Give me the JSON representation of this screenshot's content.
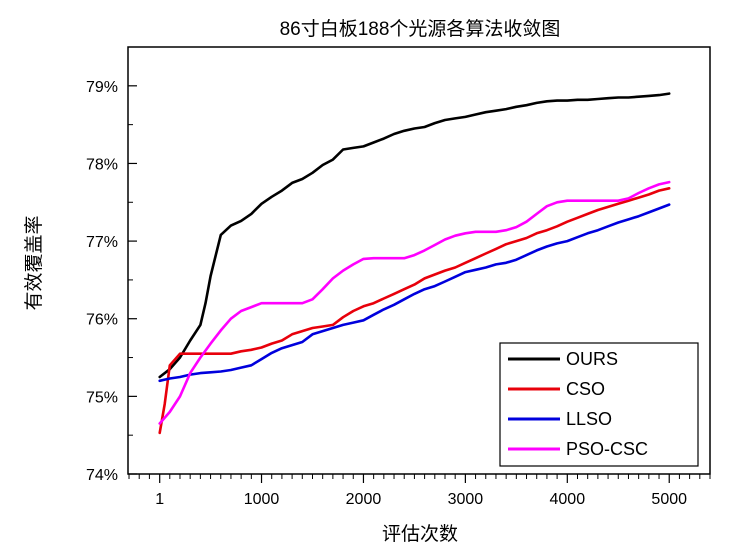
{
  "chart_data": {
    "type": "line",
    "title": "86寸白板188个光源各算法收敛图",
    "xlabel": "评估次数",
    "ylabel": "有效覆盖率",
    "xlim": [
      -310,
      5400
    ],
    "ylim": [
      74,
      79.5
    ],
    "x_ticks": [
      1,
      1000,
      2000,
      3000,
      4000,
      5000
    ],
    "x_tick_labels": [
      "1",
      "1000",
      "2000",
      "3000",
      "4000",
      "5000"
    ],
    "y_ticks": [
      74,
      75,
      76,
      77,
      78,
      79
    ],
    "y_tick_labels": [
      "74%",
      "75%",
      "76%",
      "77%",
      "78%",
      "79%"
    ],
    "grid": false,
    "legend_position": "bottom-right",
    "series": [
      {
        "name": "OURS",
        "color": "#000000",
        "points": [
          [
            1,
            75.25
          ],
          [
            100,
            75.35
          ],
          [
            200,
            75.5
          ],
          [
            300,
            75.72
          ],
          [
            400,
            75.92
          ],
          [
            450,
            76.2
          ],
          [
            500,
            76.55
          ],
          [
            600,
            77.08
          ],
          [
            700,
            77.2
          ],
          [
            800,
            77.26
          ],
          [
            900,
            77.35
          ],
          [
            1000,
            77.48
          ],
          [
            1100,
            77.57
          ],
          [
            1200,
            77.65
          ],
          [
            1300,
            77.75
          ],
          [
            1400,
            77.8
          ],
          [
            1500,
            77.88
          ],
          [
            1600,
            77.98
          ],
          [
            1700,
            78.05
          ],
          [
            1800,
            78.18
          ],
          [
            1900,
            78.2
          ],
          [
            2000,
            78.22
          ],
          [
            2100,
            78.27
          ],
          [
            2200,
            78.32
          ],
          [
            2300,
            78.38
          ],
          [
            2400,
            78.42
          ],
          [
            2500,
            78.45
          ],
          [
            2600,
            78.47
          ],
          [
            2700,
            78.52
          ],
          [
            2800,
            78.56
          ],
          [
            2900,
            78.58
          ],
          [
            3000,
            78.6
          ],
          [
            3100,
            78.63
          ],
          [
            3200,
            78.66
          ],
          [
            3300,
            78.68
          ],
          [
            3400,
            78.7
          ],
          [
            3500,
            78.73
          ],
          [
            3600,
            78.75
          ],
          [
            3700,
            78.78
          ],
          [
            3800,
            78.8
          ],
          [
            3900,
            78.81
          ],
          [
            4000,
            78.81
          ],
          [
            4100,
            78.82
          ],
          [
            4200,
            78.82
          ],
          [
            4300,
            78.83
          ],
          [
            4400,
            78.84
          ],
          [
            4500,
            78.85
          ],
          [
            4600,
            78.85
          ],
          [
            4700,
            78.86
          ],
          [
            4800,
            78.87
          ],
          [
            4900,
            78.88
          ],
          [
            5000,
            78.9
          ]
        ]
      },
      {
        "name": "CSO",
        "color": "#e8000b",
        "points": [
          [
            1,
            74.53
          ],
          [
            50,
            74.9
          ],
          [
            100,
            75.4
          ],
          [
            200,
            75.55
          ],
          [
            300,
            75.55
          ],
          [
            400,
            75.55
          ],
          [
            500,
            75.55
          ],
          [
            600,
            75.55
          ],
          [
            700,
            75.55
          ],
          [
            800,
            75.58
          ],
          [
            900,
            75.6
          ],
          [
            1000,
            75.63
          ],
          [
            1100,
            75.68
          ],
          [
            1200,
            75.72
          ],
          [
            1300,
            75.8
          ],
          [
            1400,
            75.84
          ],
          [
            1500,
            75.88
          ],
          [
            1600,
            75.9
          ],
          [
            1700,
            75.92
          ],
          [
            1800,
            76.02
          ],
          [
            1900,
            76.1
          ],
          [
            2000,
            76.16
          ],
          [
            2100,
            76.2
          ],
          [
            2200,
            76.26
          ],
          [
            2300,
            76.32
          ],
          [
            2400,
            76.38
          ],
          [
            2500,
            76.44
          ],
          [
            2600,
            76.52
          ],
          [
            2700,
            76.57
          ],
          [
            2800,
            76.62
          ],
          [
            2900,
            76.66
          ],
          [
            3000,
            76.72
          ],
          [
            3100,
            76.78
          ],
          [
            3200,
            76.84
          ],
          [
            3300,
            76.9
          ],
          [
            3400,
            76.96
          ],
          [
            3500,
            77.0
          ],
          [
            3600,
            77.04
          ],
          [
            3700,
            77.1
          ],
          [
            3800,
            77.14
          ],
          [
            3900,
            77.19
          ],
          [
            4000,
            77.25
          ],
          [
            4100,
            77.3
          ],
          [
            4200,
            77.35
          ],
          [
            4300,
            77.4
          ],
          [
            4400,
            77.44
          ],
          [
            4500,
            77.48
          ],
          [
            4600,
            77.52
          ],
          [
            4700,
            77.56
          ],
          [
            4800,
            77.6
          ],
          [
            4900,
            77.65
          ],
          [
            5000,
            77.68
          ]
        ]
      },
      {
        "name": "LLSO",
        "color": "#0000dd",
        "points": [
          [
            1,
            75.2
          ],
          [
            100,
            75.23
          ],
          [
            200,
            75.25
          ],
          [
            300,
            75.28
          ],
          [
            400,
            75.3
          ],
          [
            500,
            75.31
          ],
          [
            600,
            75.32
          ],
          [
            700,
            75.34
          ],
          [
            800,
            75.37
          ],
          [
            900,
            75.4
          ],
          [
            1000,
            75.48
          ],
          [
            1100,
            75.56
          ],
          [
            1200,
            75.62
          ],
          [
            1300,
            75.66
          ],
          [
            1400,
            75.7
          ],
          [
            1500,
            75.8
          ],
          [
            1600,
            75.84
          ],
          [
            1700,
            75.88
          ],
          [
            1800,
            75.92
          ],
          [
            1900,
            75.95
          ],
          [
            2000,
            75.98
          ],
          [
            2100,
            76.05
          ],
          [
            2200,
            76.12
          ],
          [
            2300,
            76.18
          ],
          [
            2400,
            76.25
          ],
          [
            2500,
            76.32
          ],
          [
            2600,
            76.38
          ],
          [
            2700,
            76.42
          ],
          [
            2800,
            76.48
          ],
          [
            2900,
            76.54
          ],
          [
            3000,
            76.6
          ],
          [
            3100,
            76.63
          ],
          [
            3200,
            76.66
          ],
          [
            3300,
            76.7
          ],
          [
            3400,
            76.72
          ],
          [
            3500,
            76.76
          ],
          [
            3600,
            76.82
          ],
          [
            3700,
            76.88
          ],
          [
            3800,
            76.93
          ],
          [
            3900,
            76.97
          ],
          [
            4000,
            77.0
          ],
          [
            4100,
            77.05
          ],
          [
            4200,
            77.1
          ],
          [
            4300,
            77.14
          ],
          [
            4400,
            77.19
          ],
          [
            4500,
            77.24
          ],
          [
            4600,
            77.28
          ],
          [
            4700,
            77.32
          ],
          [
            4800,
            77.37
          ],
          [
            4900,
            77.42
          ],
          [
            5000,
            77.47
          ]
        ]
      },
      {
        "name": "PSO-CSC",
        "color": "#ff00ff",
        "points": [
          [
            1,
            74.65
          ],
          [
            100,
            74.8
          ],
          [
            200,
            75.0
          ],
          [
            300,
            75.3
          ],
          [
            400,
            75.5
          ],
          [
            500,
            75.68
          ],
          [
            600,
            75.85
          ],
          [
            700,
            76.0
          ],
          [
            800,
            76.1
          ],
          [
            900,
            76.15
          ],
          [
            1000,
            76.2
          ],
          [
            1100,
            76.2
          ],
          [
            1200,
            76.2
          ],
          [
            1300,
            76.2
          ],
          [
            1400,
            76.2
          ],
          [
            1500,
            76.25
          ],
          [
            1600,
            76.38
          ],
          [
            1700,
            76.52
          ],
          [
            1800,
            76.62
          ],
          [
            1900,
            76.7
          ],
          [
            2000,
            76.77
          ],
          [
            2100,
            76.78
          ],
          [
            2200,
            76.78
          ],
          [
            2300,
            76.78
          ],
          [
            2400,
            76.78
          ],
          [
            2500,
            76.82
          ],
          [
            2600,
            76.88
          ],
          [
            2700,
            76.95
          ],
          [
            2800,
            77.02
          ],
          [
            2900,
            77.07
          ],
          [
            3000,
            77.1
          ],
          [
            3100,
            77.12
          ],
          [
            3200,
            77.12
          ],
          [
            3300,
            77.12
          ],
          [
            3400,
            77.14
          ],
          [
            3500,
            77.18
          ],
          [
            3600,
            77.25
          ],
          [
            3700,
            77.35
          ],
          [
            3800,
            77.45
          ],
          [
            3900,
            77.5
          ],
          [
            4000,
            77.52
          ],
          [
            4100,
            77.52
          ],
          [
            4200,
            77.52
          ],
          [
            4300,
            77.52
          ],
          [
            4400,
            77.52
          ],
          [
            4500,
            77.52
          ],
          [
            4600,
            77.55
          ],
          [
            4700,
            77.62
          ],
          [
            4800,
            77.68
          ],
          [
            4900,
            77.73
          ],
          [
            5000,
            77.76
          ]
        ]
      }
    ]
  }
}
